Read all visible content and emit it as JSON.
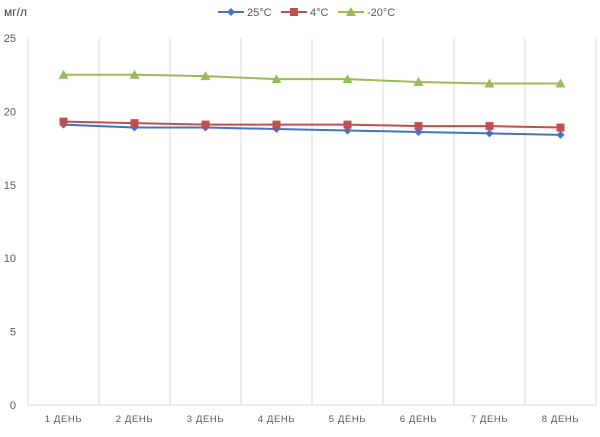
{
  "chart_data": {
    "type": "line",
    "title": "",
    "ylabel": "мг/л",
    "xlabel": "",
    "ylim": [
      0,
      25
    ],
    "yticks": [
      0,
      5,
      10,
      15,
      20,
      25
    ],
    "grid": "vertical",
    "legend": "top-center",
    "categories": [
      "1 ДЕНЬ",
      "2 ДЕНЬ",
      "3 ДЕНЬ",
      "4 ДЕНЬ",
      "5 ДЕНЬ",
      "6 ДЕНЬ",
      "7 ДЕНЬ",
      "8 ДЕНЬ"
    ],
    "series": [
      {
        "name": "25°C",
        "color": "#4472C4",
        "marker": "diamond",
        "values": [
          19.1,
          18.9,
          18.9,
          18.8,
          18.7,
          18.6,
          18.5,
          18.4
        ]
      },
      {
        "name": "4°C",
        "color": "#C0504D",
        "marker": "square",
        "values": [
          19.3,
          19.2,
          19.1,
          19.1,
          19.1,
          19.0,
          19.0,
          18.9
        ]
      },
      {
        "name": "-20°C",
        "color": "#9BBB59",
        "marker": "triangle",
        "values": [
          22.5,
          22.5,
          22.4,
          22.2,
          22.2,
          22.0,
          21.9,
          21.9
        ]
      }
    ]
  }
}
